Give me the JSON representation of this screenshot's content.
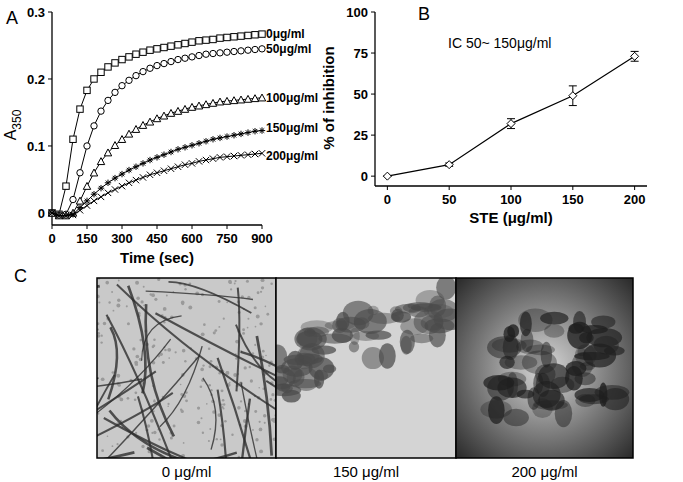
{
  "chart_data": [
    {
      "type": "line",
      "title": "A",
      "x_label": "Time (sec)",
      "y_label": "A 350",
      "x": [
        0,
        30,
        60,
        90,
        120,
        150,
        180,
        210,
        240,
        270,
        300,
        330,
        360,
        390,
        420,
        450,
        480,
        510,
        540,
        570,
        600,
        630,
        660,
        690,
        720,
        750,
        780,
        810,
        840,
        870,
        900
      ],
      "xlim": [
        0,
        900
      ],
      "xticks": [
        0,
        150,
        300,
        450,
        600,
        750,
        900
      ],
      "ylim": [
        -0.018,
        0.3
      ],
      "yticks": [
        0,
        0.1,
        0.2,
        0.3
      ],
      "series": [
        {
          "name": "0μg/ml",
          "color": "#000000",
          "marker": "square",
          "values": [
            0,
            -0.002,
            0.04,
            0.11,
            0.155,
            0.183,
            0.2,
            0.21,
            0.218,
            0.224,
            0.229,
            0.233,
            0.237,
            0.24,
            0.243,
            0.245,
            0.247,
            0.249,
            0.251,
            0.253,
            0.255,
            0.257,
            0.258,
            0.259,
            0.261,
            0.262,
            0.263,
            0.264,
            0.265,
            0.266,
            0.267
          ]
        },
        {
          "name": "50μg/ml",
          "color": "#000000",
          "marker": "circle",
          "values": [
            0,
            -0.003,
            -0.002,
            0.02,
            0.06,
            0.1,
            0.13,
            0.152,
            0.168,
            0.18,
            0.19,
            0.198,
            0.205,
            0.211,
            0.216,
            0.22,
            0.223,
            0.226,
            0.229,
            0.231,
            0.233,
            0.235,
            0.237,
            0.238,
            0.239,
            0.24,
            0.241,
            0.242,
            0.243,
            0.244,
            0.245
          ]
        },
        {
          "name": "100μg/ml",
          "color": "#000000",
          "marker": "triangle",
          "values": [
            0,
            -0.004,
            -0.004,
            0.0,
            0.018,
            0.04,
            0.06,
            0.077,
            0.09,
            0.101,
            0.11,
            0.118,
            0.125,
            0.131,
            0.136,
            0.141,
            0.145,
            0.149,
            0.152,
            0.155,
            0.158,
            0.16,
            0.162,
            0.164,
            0.166,
            0.167,
            0.168,
            0.169,
            0.17,
            0.171,
            0.172
          ]
        },
        {
          "name": "150μg/ml",
          "color": "#000000",
          "marker": "asterisk",
          "values": [
            0,
            -0.004,
            -0.004,
            -0.002,
            0.008,
            0.018,
            0.028,
            0.037,
            0.045,
            0.052,
            0.058,
            0.064,
            0.069,
            0.074,
            0.079,
            0.083,
            0.087,
            0.091,
            0.095,
            0.098,
            0.101,
            0.104,
            0.107,
            0.11,
            0.112,
            0.114,
            0.116,
            0.118,
            0.12,
            0.122,
            0.123
          ]
        },
        {
          "name": "200μg/ml",
          "color": "#000000",
          "marker": "x",
          "values": [
            0,
            -0.004,
            -0.004,
            -0.003,
            0.004,
            0.011,
            0.018,
            0.024,
            0.03,
            0.035,
            0.04,
            0.045,
            0.049,
            0.053,
            0.057,
            0.06,
            0.063,
            0.066,
            0.069,
            0.072,
            0.074,
            0.077,
            0.079,
            0.081,
            0.083,
            0.084,
            0.085,
            0.086,
            0.087,
            0.088,
            0.089
          ]
        }
      ]
    },
    {
      "type": "line",
      "title": "B",
      "x_label": "STE (μg/ml)",
      "y_label": "% of inhibition",
      "annotations": [
        "IC 50~ 150μg/ml"
      ],
      "x": [
        0,
        50,
        100,
        150,
        200
      ],
      "values": [
        0,
        7,
        32,
        49,
        73
      ],
      "errors": [
        0,
        1,
        3,
        6,
        3
      ],
      "color": "#000000",
      "marker": "diamond",
      "xlim": [
        -10,
        210
      ],
      "xticks": [
        0,
        50,
        100,
        150,
        200
      ],
      "ylim": [
        -6,
        100
      ],
      "yticks": [
        0,
        25,
        50,
        75,
        100
      ]
    }
  ],
  "micrographs": {
    "label": "C",
    "captions": [
      "0 μg/ml",
      "150 μg/ml",
      "200 μg/ml"
    ]
  }
}
